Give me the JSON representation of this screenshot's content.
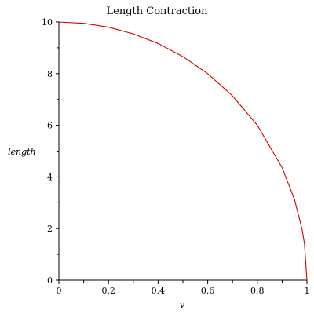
{
  "chart_data": {
    "type": "line",
    "title": "Length Contraction",
    "xlabel": "v",
    "ylabel": "length",
    "xlim": [
      0,
      1
    ],
    "ylim": [
      0,
      10
    ],
    "x_ticks": [
      0,
      0.2,
      0.4,
      0.6,
      0.8,
      1
    ],
    "x_tick_labels": [
      "0",
      "0.2",
      "0.4",
      "0.6",
      "0.8",
      "1"
    ],
    "y_ticks": [
      0,
      2,
      4,
      6,
      8,
      10
    ],
    "y_tick_labels": [
      "0",
      "2",
      "4",
      "6",
      "8",
      "10"
    ],
    "grid": false,
    "series": [
      {
        "color": "#d40000",
        "x": [
          0,
          0.1,
          0.2,
          0.3,
          0.4,
          0.5,
          0.6,
          0.7,
          0.8,
          0.9,
          0.95,
          0.98,
          0.99,
          1.0
        ],
        "y": [
          10,
          9.95,
          9.8,
          9.54,
          9.17,
          8.66,
          8.0,
          7.14,
          6.0,
          4.36,
          3.12,
          1.99,
          1.41,
          0
        ]
      }
    ]
  }
}
